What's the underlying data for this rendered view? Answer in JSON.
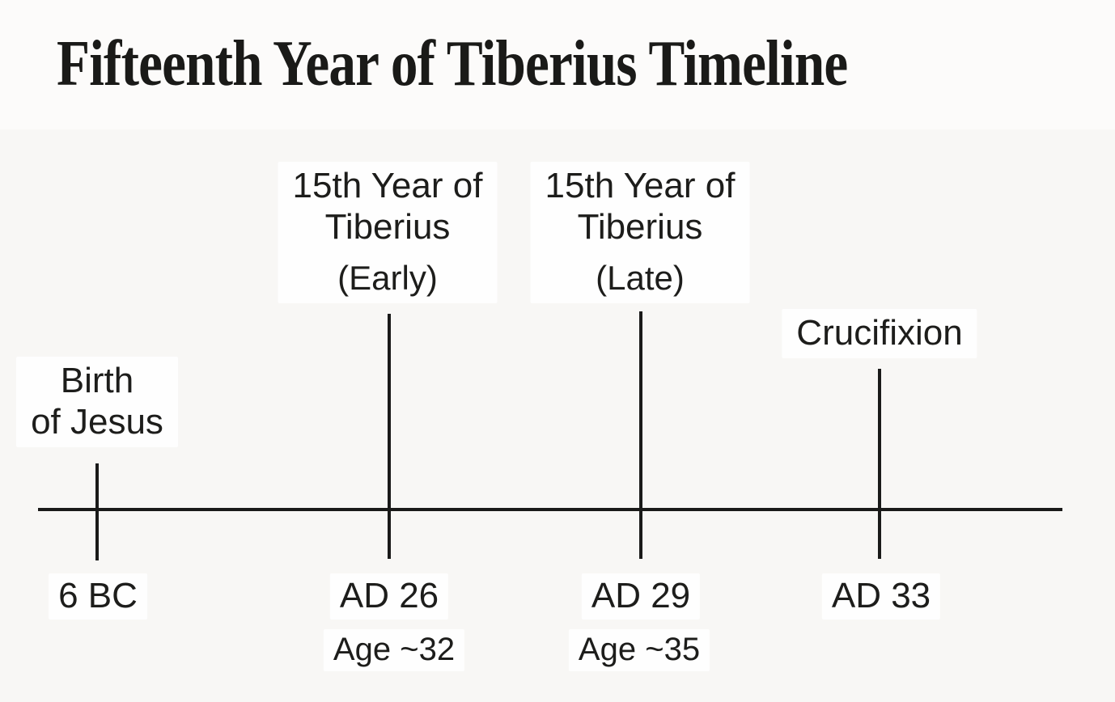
{
  "figure": {
    "title": "Fifteenth Year of Tiberius Timeline"
  },
  "colors": {
    "ink": "#1a1a19",
    "background": "#f8f7f5",
    "label_patch": "#ffffff"
  },
  "events": [
    {
      "name_line1": "Birth",
      "name_line2": "of Jesus",
      "qualifier": "",
      "year": "6 BC",
      "age": ""
    },
    {
      "name_line1": "15th Year of",
      "name_line2": "Tiberius",
      "qualifier": "(Early)",
      "year": "AD 26",
      "age": "Age ~32"
    },
    {
      "name_line1": "15th Year of",
      "name_line2": "Tiberius",
      "qualifier": "(Late)",
      "year": "AD 29",
      "age": "Age ~35"
    },
    {
      "name_line1": "Crucifixion",
      "name_line2": "",
      "qualifier": "",
      "year": "AD 33",
      "age": ""
    }
  ],
  "chart_data": {
    "type": "timeline",
    "title": "Fifteenth Year of Tiberius Timeline",
    "orientation": "horizontal",
    "axis_range": [
      "6 BC",
      "AD 33"
    ],
    "events": [
      {
        "label": "Birth of Jesus",
        "year": "6 BC",
        "age": null
      },
      {
        "label": "15th Year of Tiberius (Early)",
        "year": "AD 26",
        "age": "~32"
      },
      {
        "label": "15th Year of Tiberius (Late)",
        "year": "AD 29",
        "age": "~35"
      },
      {
        "label": "Crucifixion",
        "year": "AD 33",
        "age": null
      }
    ]
  }
}
